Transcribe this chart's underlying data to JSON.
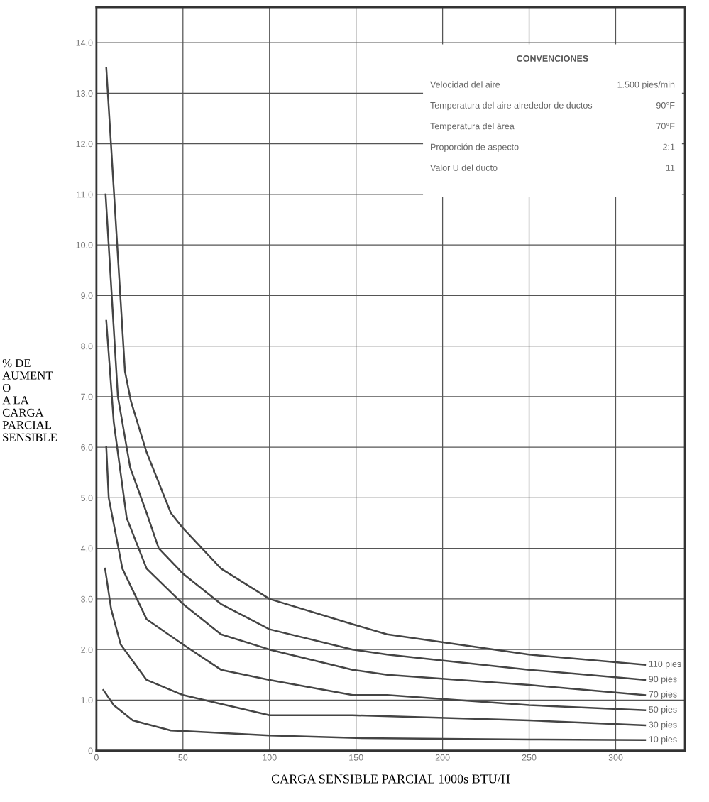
{
  "chart_data": {
    "type": "line",
    "xlabel": "CARGA SENSIBLE PARCIAL 1000s BTU/H",
    "ylabel": "% DE\nAUMENT\nO\nA LA\nCARGA\nPARCIAL\nSENSIBLE",
    "xlim": [
      0,
      340
    ],
    "ylim": [
      0,
      14.7
    ],
    "xticks": [
      0,
      50,
      100,
      150,
      200,
      250,
      300
    ],
    "yticks": [
      0,
      {
        "value": 1,
        "label": "1.0"
      },
      {
        "value": 2,
        "label": "2.0"
      },
      {
        "value": 3,
        "label": "3.0"
      },
      {
        "value": 4,
        "label": "4.0"
      },
      {
        "value": 5,
        "label": "5.0"
      },
      {
        "value": 6,
        "label": "6.0"
      },
      {
        "value": 7,
        "label": "7.0"
      },
      {
        "value": 8,
        "label": "8.0"
      },
      {
        "value": 9,
        "label": "9.0"
      },
      {
        "value": 10,
        "label": "10.0"
      },
      {
        "value": 11,
        "label": "11.0"
      },
      {
        "value": 12,
        "label": "12.0"
      },
      {
        "value": 13,
        "label": "13.0"
      },
      {
        "value": 14,
        "label": "14.0"
      }
    ],
    "grid": true,
    "legend": false,
    "marker": "none",
    "line_style": "solid",
    "series": [
      {
        "name": "110 pies",
        "color": "#444444",
        "x": [
          5.7,
          16.5,
          20,
          29,
          43,
          50,
          72,
          100,
          148,
          168,
          250,
          317
        ],
        "values": [
          13.5,
          7.5,
          6.9,
          5.9,
          4.7,
          4.4,
          3.6,
          3.0,
          2.5,
          2.3,
          1.9,
          1.7
        ]
      },
      {
        "name": "90 pies",
        "color": "#444444",
        "x": [
          5.3,
          12.4,
          19.5,
          29,
          36,
          50,
          72,
          100,
          148,
          168,
          250,
          317
        ],
        "values": [
          11.0,
          7.0,
          5.6,
          4.7,
          4.0,
          3.5,
          2.9,
          2.4,
          2.0,
          1.9,
          1.6,
          1.4
        ]
      },
      {
        "name": "70 pies",
        "color": "#444444",
        "x": [
          5.7,
          10,
          17.5,
          29,
          50,
          72,
          100,
          148,
          168,
          250,
          317
        ],
        "values": [
          8.5,
          6.5,
          4.6,
          3.6,
          2.9,
          2.3,
          2.0,
          1.6,
          1.5,
          1.3,
          1.1
        ]
      },
      {
        "name": "50 pies",
        "color": "#444444",
        "x": [
          5.7,
          7.1,
          15,
          29,
          50,
          72,
          100,
          148,
          168,
          250,
          317
        ],
        "values": [
          6.0,
          5.0,
          3.6,
          2.6,
          2.1,
          1.6,
          1.4,
          1.1,
          1.1,
          0.9,
          0.8
        ]
      },
      {
        "name": "30 pies",
        "color": "#444444",
        "x": [
          5,
          8.5,
          14,
          29,
          50,
          100,
          148,
          250,
          317
        ],
        "values": [
          3.6,
          2.8,
          2.1,
          1.4,
          1.1,
          0.7,
          0.7,
          0.6,
          0.5
        ]
      },
      {
        "name": "10 pies",
        "color": "#444444",
        "x": [
          4,
          10,
          21,
          43,
          100,
          150,
          250,
          317
        ],
        "values": [
          1.2,
          0.9,
          0.6,
          0.4,
          0.3,
          0.25,
          0.22,
          0.21
        ]
      }
    ],
    "annotations": [
      "CONVENCIONES",
      "Velocidad del aire",
      "1.500 pies/min",
      "Temperatura del aire alrededor de ductos",
      "90°F",
      "Temperatura del área",
      "70°F",
      "Proporción de aspecto",
      "2:1",
      "Valor U del ducto",
      "11"
    ]
  }
}
